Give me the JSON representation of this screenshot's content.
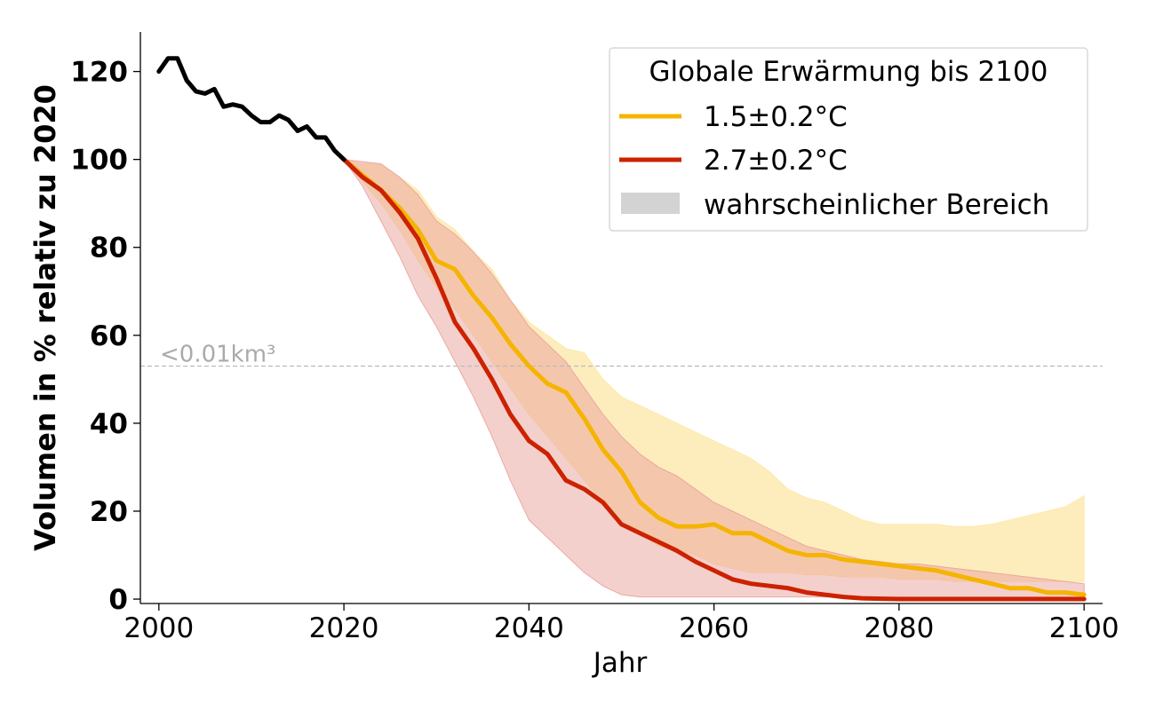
{
  "chart_data": {
    "type": "line",
    "xlabel": "Jahr",
    "ylabel": "Volumen in % relativ zu 2020",
    "xlim": [
      1998,
      2102
    ],
    "ylim": [
      -1,
      129
    ],
    "x_ticks": [
      "2000",
      "2020",
      "2040",
      "2060",
      "2080",
      "2100"
    ],
    "y_ticks": [
      "0",
      "20",
      "40",
      "60",
      "80",
      "100",
      "120"
    ],
    "grid": false,
    "legend": {
      "title": "Globale Erwärmung bis 2100",
      "placement": "top-right",
      "range_label": "wahrscheinlicher Bereich"
    },
    "reference_line": {
      "y": 53,
      "label": "<0.01km³"
    },
    "colors": {
      "observed": "#000000",
      "s15": "#f4b400",
      "s27": "#cc2200",
      "s15_band": "#fde7a6",
      "s27_band": "#e9a29b",
      "reference": "#bbbbbb",
      "legend_range": "#d3d3d3"
    },
    "observed": {
      "x": [
        2000,
        2001,
        2002,
        2003,
        2004,
        2005,
        2006,
        2007,
        2008,
        2009,
        2010,
        2011,
        2012,
        2013,
        2014,
        2015,
        2016,
        2017,
        2018,
        2019,
        2020
      ],
      "y": [
        120,
        123,
        123,
        118,
        115.5,
        115,
        116,
        112,
        112.5,
        112,
        110,
        108.5,
        108.5,
        110,
        109,
        106.5,
        107.5,
        105,
        105,
        102,
        100
      ]
    },
    "series": [
      {
        "name": "1.5±0.2°C",
        "x": [
          2020,
          2022,
          2024,
          2026,
          2028,
          2030,
          2032,
          2034,
          2036,
          2038,
          2040,
          2042,
          2044,
          2046,
          2048,
          2050,
          2052,
          2054,
          2056,
          2058,
          2060,
          2062,
          2064,
          2066,
          2068,
          2070,
          2072,
          2074,
          2076,
          2078,
          2080,
          2082,
          2084,
          2086,
          2088,
          2090,
          2092,
          2094,
          2096,
          2098,
          2100
        ],
        "values": [
          100,
          96.5,
          93,
          89,
          84,
          77,
          75,
          69,
          64,
          58,
          53,
          49,
          47,
          41,
          34,
          29,
          22,
          18.5,
          16.5,
          16.5,
          17,
          15,
          15,
          13,
          11,
          10,
          10,
          9,
          8.5,
          8,
          7.5,
          7,
          6.5,
          5.5,
          4.5,
          3.5,
          2.5,
          2.5,
          1.5,
          1.5,
          1
        ],
        "lower": [
          100,
          95,
          90,
          84,
          77,
          71,
          66,
          60,
          54,
          48,
          42,
          37,
          32,
          27,
          22,
          18,
          15,
          12,
          11,
          10,
          8,
          7,
          6,
          6,
          6,
          5.5,
          5.5,
          5,
          5,
          5,
          4.5,
          4.5,
          4.5,
          4,
          4,
          4,
          4,
          4,
          4,
          4,
          4
        ],
        "upper": [
          100,
          99,
          99,
          96,
          93,
          87,
          84,
          79,
          75,
          68,
          63,
          60,
          57,
          56,
          50,
          46,
          44,
          42,
          40,
          38,
          36,
          34,
          32,
          29,
          25,
          23,
          22,
          20,
          18,
          17,
          17,
          17,
          17,
          16.5,
          16.5,
          17,
          18,
          19,
          20,
          21,
          23.5
        ]
      },
      {
        "name": "2.7±0.2°C",
        "x": [
          2020,
          2022,
          2024,
          2026,
          2028,
          2030,
          2032,
          2034,
          2036,
          2038,
          2040,
          2042,
          2044,
          2046,
          2048,
          2050,
          2052,
          2054,
          2056,
          2058,
          2060,
          2062,
          2064,
          2066,
          2068,
          2070,
          2072,
          2074,
          2076,
          2078,
          2080,
          2082,
          2084,
          2086,
          2088,
          2090,
          2092,
          2094,
          2096,
          2098,
          2100
        ],
        "values": [
          100,
          96,
          93,
          88,
          82,
          73,
          63,
          57,
          50,
          42,
          36,
          33,
          27,
          25,
          22,
          17,
          15,
          13,
          11,
          8.5,
          6.5,
          4.5,
          3.5,
          3,
          2.5,
          1.5,
          1,
          0.5,
          0.2,
          0.1,
          0,
          0,
          0,
          0,
          0,
          0,
          0,
          0,
          0,
          0,
          0
        ],
        "lower": [
          100,
          94,
          86,
          78,
          69,
          62,
          54,
          46,
          37,
          27,
          18,
          14,
          10,
          6,
          3,
          1,
          0.5,
          0.5,
          0.5,
          0.5,
          0.5,
          0.5,
          0.5,
          0.5,
          0.5,
          0.5,
          0.5,
          0.5,
          0.5,
          0.5,
          0.5,
          0.5,
          0.5,
          0.5,
          0.5,
          0.5,
          0.5,
          0.5,
          0.5,
          0.5,
          0.5
        ],
        "upper": [
          100,
          99.5,
          99,
          96,
          92,
          86,
          83,
          79,
          74,
          68,
          62,
          58,
          54,
          48,
          42,
          37,
          33,
          30,
          28,
          25,
          22,
          20,
          18,
          16,
          14,
          12,
          11,
          10,
          9,
          8.5,
          8,
          8,
          7.5,
          7,
          6.5,
          6,
          5.5,
          5,
          4.5,
          4,
          3.5
        ]
      }
    ]
  }
}
